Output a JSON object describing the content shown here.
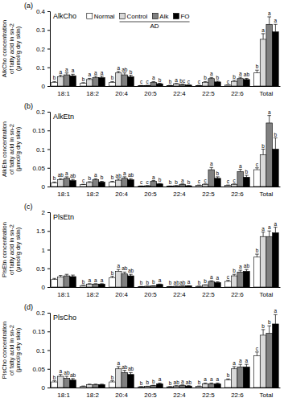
{
  "chart_data": [
    {
      "type": "bar",
      "panel": "(a)",
      "title": "AlkCho",
      "y_label": [
        "AlkCho concentration",
        "of fatty acid in sn-2",
        "(μmol/g dry skin)"
      ],
      "categories": [
        "18:1",
        "18:2",
        "20:4",
        "20:5",
        "22:4",
        "22:5",
        "22:6",
        "Total"
      ],
      "ylim": [
        0,
        0.4
      ],
      "yticks": [
        0,
        0.1,
        0.2,
        0.3,
        0.4
      ],
      "legend": "top",
      "annotation": "AD",
      "series": [
        {
          "name": "Normal",
          "color": "#ffffff",
          "values": [
            0.02,
            0.015,
            0.02,
            0.002,
            0.003,
            0.003,
            0.005,
            0.07
          ],
          "errors": [
            0.004,
            0.003,
            0.004,
            0.001,
            0.001,
            0.001,
            0.001,
            0.015
          ],
          "letters": [
            "b",
            "b",
            "b",
            "c",
            "b",
            "c",
            "c",
            "b"
          ]
        },
        {
          "name": "Control",
          "color": "#d9d9d9",
          "values": [
            0.05,
            0.035,
            0.07,
            0.003,
            0.012,
            0.02,
            0.025,
            0.25
          ],
          "errors": [
            0.008,
            0.006,
            0.008,
            0.001,
            0.002,
            0.004,
            0.005,
            0.03
          ],
          "letters": [
            "a",
            "a",
            "a",
            "c",
            "a",
            "b",
            "b",
            "a"
          ]
        },
        {
          "name": "Alk",
          "color": "#808080",
          "values": [
            0.06,
            0.045,
            0.06,
            0.02,
            0.008,
            0.04,
            0.04,
            0.33
          ],
          "errors": [
            0.01,
            0.008,
            0.01,
            0.004,
            0.002,
            0.006,
            0.007,
            0.04
          ],
          "letters": [
            "a",
            "a",
            "ab",
            "a",
            "bc",
            "a",
            "a",
            "a"
          ]
        },
        {
          "name": "FO",
          "color": "#000000",
          "values": [
            0.055,
            0.045,
            0.05,
            0.012,
            0.005,
            0.022,
            0.035,
            0.29
          ],
          "errors": [
            0.008,
            0.008,
            0.008,
            0.003,
            0.001,
            0.004,
            0.006,
            0.04
          ],
          "letters": [
            "a",
            "a",
            "b",
            "b",
            "c",
            "b",
            "ab",
            "a"
          ]
        }
      ]
    },
    {
      "type": "bar",
      "panel": "(b)",
      "title": "AlkEtn",
      "y_label": [
        "AlkEtn concentration",
        "of fatty acid in sn-2",
        "(μmol/g dry skin)"
      ],
      "categories": [
        "18:1",
        "18:2",
        "20:4",
        "20:5",
        "22:4",
        "22:5",
        "22:6",
        "Total"
      ],
      "ylim": [
        0,
        0.2
      ],
      "yticks": [
        0,
        0.05,
        0.1,
        0.15,
        0.2
      ],
      "series": [
        {
          "color": "#ffffff",
          "values": [
            0.01,
            0.005,
            0.012,
            0.001,
            0.001,
            0.003,
            0.003,
            0.045
          ],
          "errors": [
            0.002,
            0.001,
            0.002,
            0.0005,
            0.0005,
            0.001,
            0.001,
            0.005
          ],
          "letters": [
            "b",
            "c",
            "b",
            "c",
            "b",
            "c",
            "c",
            "c"
          ]
        },
        {
          "color": "#d9d9d9",
          "values": [
            0.018,
            0.011,
            0.017,
            0.002,
            0.002,
            0.006,
            0.006,
            0.085
          ],
          "errors": [
            0.003,
            0.002,
            0.003,
            0.0005,
            0.0005,
            0.001,
            0.001,
            0.015
          ],
          "letters": [
            "ab",
            "b",
            "ab",
            "c",
            "b",
            "c",
            "c",
            "b"
          ]
        },
        {
          "color": "#808080",
          "values": [
            0.022,
            0.018,
            0.022,
            0.014,
            0.006,
            0.045,
            0.04,
            0.17
          ],
          "errors": [
            0.004,
            0.003,
            0.004,
            0.002,
            0.001,
            0.006,
            0.006,
            0.02
          ],
          "letters": [
            "a",
            "a",
            "a",
            "a",
            "a",
            "a",
            "a",
            "a"
          ]
        },
        {
          "color": "#000000",
          "values": [
            0.016,
            0.012,
            0.018,
            0.007,
            0.002,
            0.022,
            0.025,
            0.1
          ],
          "errors": [
            0.003,
            0.002,
            0.003,
            0.001,
            0.0005,
            0.004,
            0.005,
            0.03
          ],
          "letters": [
            "ab",
            "b",
            "ab",
            "b",
            "b",
            "b",
            "b",
            "b"
          ]
        }
      ]
    },
    {
      "type": "bar",
      "panel": "(c)",
      "title": "PlsEtn",
      "y_label": [
        "PlsEtn concentration",
        "of fatty acid in sn-2",
        "(μmol/g dry skin)"
      ],
      "categories": [
        "18:1",
        "18:2",
        "20:4",
        "20:5",
        "22:4",
        "22:5",
        "22:6",
        "Total"
      ],
      "ylim": [
        0,
        2
      ],
      "yticks": [
        0,
        0.5,
        1,
        1.5,
        2
      ],
      "series": [
        {
          "color": "#ffffff",
          "values": [
            0.2,
            0.04,
            0.25,
            0.01,
            0.01,
            0.02,
            0.15,
            0.8
          ],
          "errors": [
            0.03,
            0.01,
            0.04,
            0.005,
            0.005,
            0.005,
            0.03,
            0.08
          ],
          "letters": [
            null,
            "b",
            "b",
            "b",
            "b",
            "b",
            "c",
            "b"
          ]
        },
        {
          "color": "#d9d9d9",
          "values": [
            0.27,
            0.08,
            0.42,
            0.02,
            0.02,
            0.05,
            0.3,
            1.35
          ],
          "errors": [
            0.04,
            0.01,
            0.05,
            0.005,
            0.005,
            0.01,
            0.04,
            0.12
          ],
          "letters": [
            null,
            "a",
            "a",
            "b",
            "ab",
            "b",
            "b",
            "a"
          ]
        },
        {
          "color": "#808080",
          "values": [
            0.3,
            0.08,
            0.35,
            0.03,
            0.025,
            0.15,
            0.4,
            1.35
          ],
          "errors": [
            0.04,
            0.01,
            0.05,
            0.005,
            0.005,
            0.02,
            0.05,
            0.15
          ],
          "letters": [
            null,
            "a",
            "ab",
            "b",
            "ab",
            "a",
            "a",
            "a"
          ]
        },
        {
          "color": "#000000",
          "values": [
            0.28,
            0.08,
            0.3,
            0.07,
            0.03,
            0.12,
            0.42,
            1.45
          ],
          "errors": [
            0.04,
            0.01,
            0.04,
            0.01,
            0.005,
            0.02,
            0.05,
            0.15
          ],
          "letters": [
            null,
            "a",
            "ab",
            "a",
            "a",
            "a",
            "ab",
            "a"
          ]
        }
      ]
    },
    {
      "type": "bar",
      "panel": "(d)",
      "title": "PlsCho",
      "y_label": [
        "PlsCho concentration",
        "of fatty acid in sn-2",
        "(μmol/g dry skin)"
      ],
      "categories": [
        "18:1",
        "18:2",
        "20:4",
        "20:5",
        "22:4",
        "22:5",
        "22:6",
        "Total"
      ],
      "ylim": [
        0,
        0.2
      ],
      "yticks": [
        0,
        0.05,
        0.1,
        0.15,
        0.2
      ],
      "series": [
        {
          "color": "#ffffff",
          "values": [
            0.015,
            0.003,
            0.015,
            0.002,
            0.002,
            0.003,
            0.02,
            0.085
          ],
          "errors": [
            0.003,
            0.001,
            0.003,
            0.0005,
            0.0005,
            0.001,
            0.003,
            0.01
          ],
          "letters": [
            "b",
            null,
            "b",
            "b",
            "b",
            "b",
            "b",
            "c"
          ]
        },
        {
          "color": "#d9d9d9",
          "values": [
            0.03,
            0.008,
            0.05,
            0.003,
            0.004,
            0.01,
            0.05,
            0.14
          ],
          "errors": [
            0.005,
            0.001,
            0.006,
            0.0005,
            0.001,
            0.002,
            0.006,
            0.015
          ],
          "letters": [
            "a",
            null,
            "a",
            "b",
            "ab",
            "a",
            "a",
            "b"
          ]
        },
        {
          "color": "#808080",
          "values": [
            0.025,
            0.008,
            0.04,
            0.005,
            0.006,
            0.01,
            0.055,
            0.145
          ],
          "errors": [
            0.005,
            0.001,
            0.006,
            0.001,
            0.001,
            0.002,
            0.007,
            0.02
          ],
          "letters": [
            "ab",
            null,
            "ab",
            "b",
            "a",
            "a",
            "a",
            "b"
          ]
        },
        {
          "color": "#000000",
          "values": [
            0.02,
            0.008,
            0.035,
            0.01,
            0.004,
            0.01,
            0.055,
            0.17
          ],
          "errors": [
            0.004,
            0.001,
            0.005,
            0.002,
            0.001,
            0.002,
            0.007,
            0.025
          ],
          "letters": [
            "ab",
            null,
            "ab",
            "a",
            "ab",
            "a",
            "a",
            "a"
          ]
        }
      ]
    }
  ]
}
